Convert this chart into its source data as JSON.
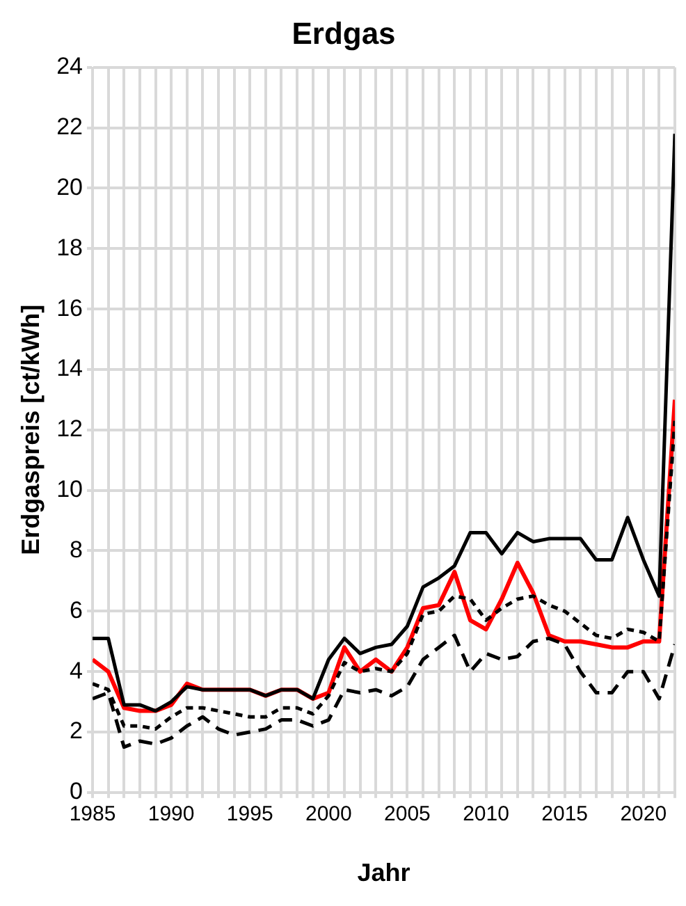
{
  "chart_data": {
    "type": "line",
    "title": "Erdgas",
    "xlabel": "Jahr",
    "ylabel": "Erdgaspreis [ct/kWh]",
    "x": [
      1985,
      1986,
      1987,
      1988,
      1989,
      1990,
      1991,
      1992,
      1993,
      1994,
      1995,
      1996,
      1997,
      1998,
      1999,
      2000,
      2001,
      2002,
      2003,
      2004,
      2005,
      2006,
      2007,
      2008,
      2009,
      2010,
      2011,
      2012,
      2013,
      2014,
      2015,
      2016,
      2017,
      2018,
      2019,
      2020,
      2021,
      2022
    ],
    "xlim": [
      1985,
      2022
    ],
    "xticks": [
      1985,
      {
        "value": 1986,
        "label": null
      },
      {
        "value": 1987,
        "label": null
      },
      {
        "value": 1988,
        "label": null
      },
      {
        "value": 1989,
        "label": null
      },
      1990,
      {
        "value": 1991,
        "label": null
      },
      {
        "value": 1992,
        "label": null
      },
      {
        "value": 1993,
        "label": null
      },
      {
        "value": 1994,
        "label": null
      },
      1995,
      {
        "value": 1996,
        "label": null
      },
      {
        "value": 1997,
        "label": null
      },
      {
        "value": 1998,
        "label": null
      },
      {
        "value": 1999,
        "label": null
      },
      2000,
      {
        "value": 2001,
        "label": null
      },
      {
        "value": 2002,
        "label": null
      },
      {
        "value": 2003,
        "label": null
      },
      {
        "value": 2004,
        "label": null
      },
      2005,
      {
        "value": 2006,
        "label": null
      },
      {
        "value": 2007,
        "label": null
      },
      {
        "value": 2008,
        "label": null
      },
      {
        "value": 2009,
        "label": null
      },
      2010,
      {
        "value": 2011,
        "label": null
      },
      {
        "value": 2012,
        "label": null
      },
      {
        "value": 2013,
        "label": null
      },
      {
        "value": 2014,
        "label": null
      },
      2015,
      {
        "value": 2016,
        "label": null
      },
      {
        "value": 2017,
        "label": null
      },
      {
        "value": 2018,
        "label": null
      },
      {
        "value": 2019,
        "label": null
      },
      2020,
      {
        "value": 2021,
        "label": null
      },
      {
        "value": 2022,
        "label": null
      }
    ],
    "ylim": [
      0,
      24
    ],
    "yticks": [
      0,
      2,
      4,
      6,
      8,
      10,
      12,
      14,
      16,
      18,
      20,
      22,
      24
    ],
    "grid": true,
    "legend": false,
    "marker": "none",
    "series": [
      {
        "color": "#000000",
        "line_style": "solid",
        "values": [
          5.1,
          5.1,
          2.9,
          2.9,
          2.7,
          3.0,
          3.5,
          3.4,
          3.4,
          3.4,
          3.4,
          3.2,
          3.4,
          3.4,
          3.1,
          4.4,
          5.1,
          4.6,
          4.8,
          4.9,
          5.5,
          6.8,
          7.1,
          7.5,
          8.6,
          8.6,
          7.9,
          8.6,
          8.3,
          8.4,
          8.4,
          8.4,
          7.7,
          7.7,
          9.1,
          7.7,
          6.5,
          21.8
        ]
      },
      {
        "color": "#000000",
        "line_style": "dotted",
        "values": [
          3.6,
          3.4,
          2.2,
          2.2,
          2.1,
          2.5,
          2.8,
          2.8,
          2.7,
          2.6,
          2.5,
          2.5,
          2.8,
          2.8,
          2.6,
          3.2,
          4.3,
          4.0,
          4.1,
          4.0,
          4.6,
          5.9,
          6.0,
          6.5,
          6.4,
          5.7,
          6.1,
          6.4,
          6.5,
          6.2,
          6.0,
          5.6,
          5.2,
          5.1,
          5.4,
          5.3,
          5.0,
          12.3
        ]
      },
      {
        "color": "#000000",
        "line_style": "dashed",
        "values": [
          3.1,
          3.3,
          1.5,
          1.7,
          1.6,
          1.8,
          2.2,
          2.5,
          2.1,
          1.9,
          2.0,
          2.1,
          2.4,
          2.4,
          2.2,
          2.4,
          3.4,
          3.3,
          3.4,
          3.2,
          3.5,
          4.4,
          4.8,
          5.2,
          4.0,
          4.6,
          4.4,
          4.5,
          5.0,
          5.1,
          4.9,
          4.0,
          3.3,
          3.3,
          4.0,
          4.0,
          3.1,
          4.9
        ]
      },
      {
        "color": "#ff0000",
        "line_style": "solid",
        "values": [
          4.4,
          4.0,
          2.8,
          2.7,
          2.7,
          2.9,
          3.6,
          3.4,
          3.4,
          3.4,
          3.4,
          3.2,
          3.4,
          3.4,
          3.1,
          3.3,
          4.8,
          4.0,
          4.4,
          4.0,
          4.8,
          6.1,
          6.2,
          7.3,
          5.7,
          5.4,
          6.4,
          7.6,
          6.6,
          5.2,
          5.0,
          5.0,
          4.9,
          4.8,
          4.8,
          5.0,
          5.0,
          13.0
        ]
      }
    ]
  }
}
